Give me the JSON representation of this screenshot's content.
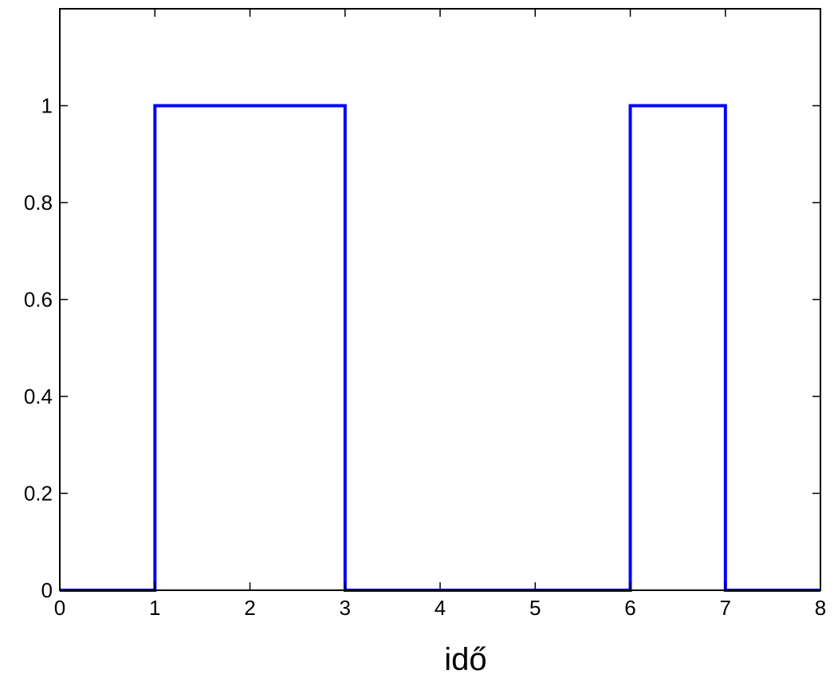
{
  "chart_data": {
    "type": "line",
    "title": "",
    "xlabel": "idő",
    "ylabel": "",
    "xlim": [
      0,
      8
    ],
    "ylim": [
      0,
      1.2
    ],
    "x_ticks": [
      "0",
      "1",
      "2",
      "3",
      "4",
      "5",
      "6",
      "7",
      "8"
    ],
    "y_ticks": [
      "0",
      "0.2",
      "0.4",
      "0.6",
      "0.8",
      "1"
    ],
    "x_tick_values": [
      0,
      1,
      2,
      3,
      4,
      5,
      6,
      7,
      8
    ],
    "y_tick_values": [
      0,
      0.2,
      0.4,
      0.6,
      0.8,
      1
    ],
    "grid": false,
    "legend": "none",
    "series": [
      {
        "color": "#0000ff",
        "x": [
          0,
          1,
          1,
          3,
          3,
          6,
          6,
          7,
          7,
          8
        ],
        "y": [
          0,
          0,
          1,
          1,
          0,
          0,
          1,
          1,
          0,
          0
        ]
      }
    ]
  }
}
